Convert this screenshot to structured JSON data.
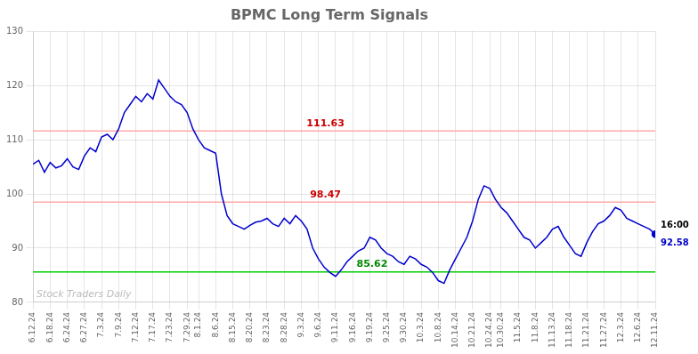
{
  "chart_data": {
    "type": "line",
    "title": "BPMC Long Term Signals",
    "color": "#0000cc",
    "grid": true,
    "ylim": [
      80,
      130
    ],
    "yticks": [
      80,
      90,
      100,
      110,
      120,
      130
    ],
    "categories": [
      "6.12.24",
      null,
      null,
      "6.18.24",
      null,
      null,
      "6.24.24",
      null,
      null,
      "6.27.24",
      null,
      null,
      "7.3.24",
      null,
      null,
      "7.9.24",
      null,
      null,
      "7.12.24",
      null,
      null,
      "7.17.24",
      null,
      null,
      "7.23.24",
      null,
      null,
      "7.29.24",
      null,
      "8.1.24",
      null,
      null,
      "8.6.24",
      null,
      null,
      "8.15.24",
      null,
      null,
      "8.20.24",
      null,
      null,
      "8.23.24",
      null,
      null,
      "8.28.24",
      null,
      null,
      "9.3.24",
      null,
      null,
      "9.6.24",
      null,
      null,
      "9.11.24",
      null,
      null,
      "9.16.24",
      null,
      null,
      "9.19.24",
      null,
      null,
      "9.25.24",
      null,
      null,
      "9.30.24",
      null,
      null,
      "10.3.24",
      null,
      null,
      "10.8.24",
      null,
      null,
      "10.14.24",
      null,
      null,
      "10.21.24",
      null,
      null,
      "10.24.24",
      null,
      "10.30.24",
      null,
      null,
      "11.5.24",
      null,
      null,
      "11.8.24",
      null,
      null,
      "11.13.24",
      null,
      null,
      "11.18.24",
      null,
      null,
      "11.21.24",
      null,
      null,
      "11.27.24",
      null,
      null,
      "12.3.24",
      null,
      null,
      "12.6.24",
      null,
      null,
      "12.11.24"
    ],
    "values": [
      105.5,
      106.2,
      104.0,
      105.8,
      104.8,
      105.2,
      106.5,
      105.0,
      104.5,
      107.0,
      108.5,
      107.8,
      110.5,
      111.0,
      110.0,
      112.0,
      115.0,
      116.5,
      118.0,
      117.0,
      118.5,
      117.5,
      121.0,
      119.5,
      118.0,
      117.0,
      116.5,
      115.0,
      112.0,
      110.0,
      108.5,
      108.0,
      107.5,
      100.0,
      96.0,
      94.5,
      94.0,
      93.5,
      94.2,
      94.8,
      95.0,
      95.5,
      94.5,
      94.0,
      95.5,
      94.5,
      96.0,
      95.0,
      93.5,
      90.0,
      88.0,
      86.5,
      85.5,
      84.8,
      86.0,
      87.5,
      88.5,
      89.5,
      90.0,
      92.0,
      91.5,
      90.0,
      89.0,
      88.5,
      87.5,
      87.0,
      88.5,
      88.0,
      87.0,
      86.5,
      85.5,
      84.0,
      83.5,
      86.0,
      88.0,
      90.0,
      92.0,
      95.0,
      99.0,
      101.5,
      101.0,
      99.0,
      97.5,
      96.5,
      95.0,
      93.5,
      92.0,
      91.5,
      90.0,
      91.0,
      92.0,
      93.5,
      94.0,
      92.0,
      90.5,
      89.0,
      88.5,
      91.0,
      93.0,
      94.5,
      95.0,
      96.0,
      97.5,
      97.0,
      95.5,
      95.0,
      94.5,
      94.0,
      93.5,
      92.58
    ],
    "hlines": [
      {
        "value": 111.63,
        "label": "111.63",
        "color": "#ffaaaa",
        "label_color": "#cc0000"
      },
      {
        "value": 98.47,
        "label": "98.47",
        "color": "#ffaaaa",
        "label_color": "#cc0000"
      },
      {
        "value": 85.62,
        "label": "85.62",
        "color": "#00cc00",
        "label_color": "#008800"
      }
    ],
    "watermark": {
      "text": "Stock Traders Daily",
      "color": "#bbbbbb"
    },
    "end_label": {
      "text": "16:00",
      "color": "#000000"
    },
    "end_price": {
      "text": "92.58",
      "color": "#0000cc"
    }
  }
}
